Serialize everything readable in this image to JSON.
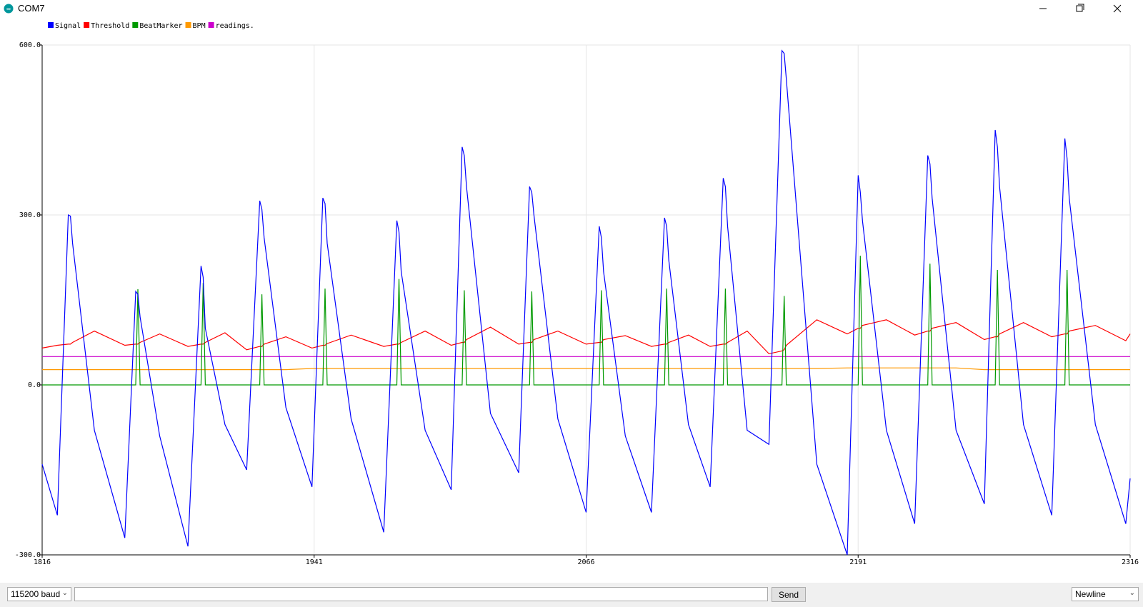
{
  "window": {
    "title": "COM7"
  },
  "controls": {
    "baud": "115200 baud",
    "send": "Send",
    "line_ending": "Newline"
  },
  "chart_data": {
    "type": "line",
    "x": [
      1816,
      1823,
      1828,
      1829,
      1830,
      1840,
      1854,
      1859,
      1860,
      1861,
      1870,
      1883,
      1889,
      1890,
      1891,
      1900,
      1910,
      1916,
      1917,
      1918,
      1928,
      1940,
      1945,
      1946,
      1947,
      1958,
      1973,
      1979,
      1980,
      1981,
      1992,
      2004,
      2009,
      2010,
      2011,
      2022,
      2035,
      2040,
      2041,
      2042,
      2053,
      2066,
      2072,
      2073,
      2074,
      2084,
      2096,
      2102,
      2103,
      2104,
      2113,
      2123,
      2129,
      2130,
      2131,
      2140,
      2150,
      2156,
      2157,
      2158,
      2172,
      2186,
      2191,
      2192,
      2193,
      2204,
      2217,
      2223,
      2224,
      2225,
      2236,
      2249,
      2254,
      2255,
      2256,
      2267,
      2280,
      2286,
      2287,
      2288,
      2300,
      2314,
      2316
    ],
    "series": [
      {
        "name": "Signal",
        "color": "#0000ff",
        "values": [
          -140,
          -230,
          300,
          298,
          250,
          -80,
          -270,
          165,
          160,
          120,
          -90,
          -285,
          210,
          190,
          100,
          -70,
          -150,
          325,
          310,
          260,
          -40,
          -180,
          330,
          320,
          250,
          -60,
          -260,
          290,
          270,
          200,
          -80,
          -185,
          420,
          405,
          350,
          -50,
          -155,
          350,
          340,
          300,
          -60,
          -225,
          280,
          260,
          200,
          -90,
          -225,
          295,
          280,
          220,
          -70,
          -180,
          365,
          350,
          280,
          -80,
          -105,
          590,
          585,
          540,
          -140,
          -300,
          370,
          340,
          290,
          -80,
          -245,
          405,
          390,
          330,
          -80,
          -210,
          450,
          420,
          350,
          -70,
          -230,
          435,
          400,
          330,
          -70,
          -245,
          -165
        ]
      },
      {
        "name": "Threshold",
        "color": "#ff0000",
        "values": [
          65,
          70,
          72,
          72,
          75,
          95,
          70,
          72,
          72,
          75,
          90,
          68,
          72,
          72,
          75,
          92,
          62,
          68,
          68,
          72,
          85,
          65,
          70,
          70,
          73,
          88,
          68,
          72,
          72,
          75,
          95,
          70,
          75,
          75,
          80,
          102,
          72,
          75,
          75,
          80,
          95,
          72,
          75,
          75,
          80,
          87,
          68,
          72,
          72,
          75,
          88,
          68,
          72,
          72,
          75,
          95,
          55,
          60,
          62,
          70,
          115,
          90,
          100,
          100,
          105,
          115,
          88,
          95,
          95,
          100,
          110,
          80,
          85,
          85,
          90,
          110,
          85,
          90,
          90,
          95,
          105,
          78,
          90
        ]
      },
      {
        "name": "BeatMarker",
        "color": "#009900",
        "values": [
          0,
          0,
          0,
          0,
          0,
          0,
          0,
          0,
          169,
          0,
          0,
          0,
          0,
          180,
          0,
          0,
          0,
          0,
          160,
          0,
          0,
          0,
          0,
          170,
          0,
          0,
          0,
          0,
          187,
          0,
          0,
          0,
          0,
          167,
          0,
          0,
          0,
          0,
          165,
          0,
          0,
          0,
          0,
          167,
          0,
          0,
          0,
          0,
          170,
          0,
          0,
          0,
          0,
          170,
          0,
          0,
          0,
          0,
          157,
          0,
          0,
          0,
          0,
          228,
          0,
          0,
          0,
          0,
          214,
          0,
          0,
          0,
          0,
          203,
          0,
          0,
          0,
          0,
          203,
          0,
          0,
          0,
          0
        ]
      },
      {
        "name": "BPM",
        "color": "#ff9900",
        "values": [
          27,
          27,
          27,
          27,
          27,
          27,
          27,
          27,
          27,
          27,
          27,
          27,
          27,
          27,
          27,
          27,
          27,
          27,
          27,
          27,
          27,
          29,
          29,
          29,
          29,
          29,
          29,
          29,
          29,
          29,
          29,
          29,
          29,
          29,
          29,
          29,
          29,
          29,
          29,
          29,
          29,
          29,
          29,
          29,
          29,
          29,
          29,
          29,
          29,
          29,
          29,
          29,
          29,
          29,
          29,
          29,
          29,
          29,
          29,
          29,
          29,
          30,
          30,
          30,
          30,
          30,
          30,
          30,
          30,
          30,
          30,
          27,
          27,
          27,
          27,
          27,
          27,
          27,
          27,
          27,
          27,
          27,
          27
        ]
      },
      {
        "name": "readings.",
        "color": "#cc00cc",
        "values": [
          50,
          50,
          50,
          50,
          50,
          50,
          50,
          50,
          50,
          50,
          50,
          50,
          50,
          50,
          50,
          50,
          50,
          50,
          50,
          50,
          50,
          50,
          50,
          50,
          50,
          50,
          50,
          50,
          50,
          50,
          50,
          50,
          50,
          50,
          50,
          50,
          50,
          50,
          50,
          50,
          50,
          50,
          50,
          50,
          50,
          50,
          50,
          50,
          50,
          50,
          50,
          50,
          50,
          50,
          50,
          50,
          50,
          50,
          50,
          50,
          50,
          50,
          50,
          50,
          50,
          50,
          50,
          50,
          50,
          50,
          50,
          50,
          50,
          50,
          50,
          50,
          50,
          50,
          50,
          50,
          50,
          50,
          50
        ]
      }
    ],
    "xlim": [
      1816,
      2316
    ],
    "xticks": [
      1816,
      1941,
      2066,
      2191,
      2316
    ],
    "ylim": [
      -300,
      600
    ],
    "yticks": [
      {
        "value": -300,
        "label": "-300.0"
      },
      {
        "value": 0,
        "label": "0.0"
      },
      {
        "value": 300,
        "label": "300.0"
      },
      {
        "value": 600,
        "label": "600.0"
      }
    ],
    "grid": true
  }
}
